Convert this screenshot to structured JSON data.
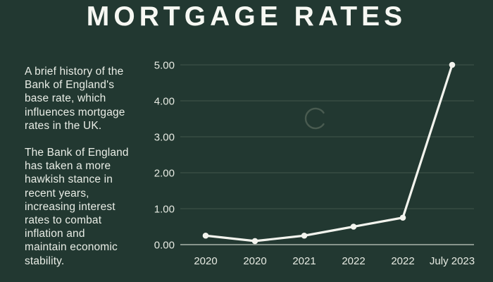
{
  "title": "MORTGAGE RATES",
  "sidebar": {
    "intro_lines": [
      "A brief history of the",
      "Bank of England's",
      "base rate, which",
      "influences mortgage",
      "rates in the UK."
    ],
    "commentary_lines": [
      "The Bank of England",
      "has taken a more",
      "hawkish stance in",
      "recent years,",
      "increasing interest",
      "rates to combat",
      "inflation and",
      "maintain economic",
      "stability."
    ]
  },
  "chart_data": {
    "type": "line",
    "categories": [
      "2020",
      "2020",
      "2021",
      "2022",
      "2022",
      "July 2023"
    ],
    "values": [
      0.25,
      0.1,
      0.25,
      0.5,
      0.75,
      5.0
    ],
    "title": "",
    "xlabel": "",
    "ylabel": "",
    "ylim": [
      0,
      5
    ],
    "ytick_labels": [
      "0.00",
      "1.00",
      "2.00",
      "3.00",
      "4.00",
      "5.00"
    ],
    "grid": true,
    "legend": "none",
    "marker": "circle"
  },
  "icons": {
    "spinner": "loading-spinner-icon"
  },
  "colors": {
    "background": "#223831",
    "title_text": "#f7f8f3",
    "body_text": "#e9ede6",
    "axis_text": "#e6eae2",
    "line": "#f3f4ee",
    "gridline": "#42564b",
    "baseline": "#a9b4aa",
    "spinner": "#495b50"
  }
}
